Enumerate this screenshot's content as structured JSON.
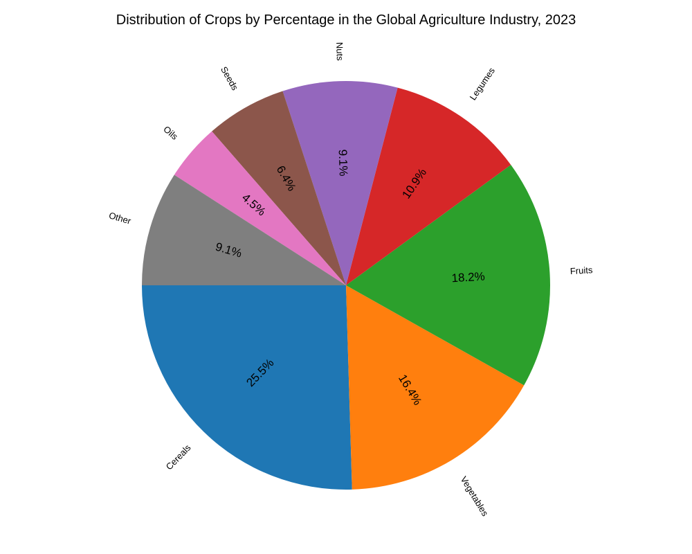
{
  "chart_data": {
    "type": "pie",
    "title": "Distribution of Crops by Percentage in the Global Agriculture Industry, 2023",
    "categories": [
      "Cereals",
      "Vegetables",
      "Fruits",
      "Legumes",
      "Nuts",
      "Seeds",
      "Oils",
      "Other"
    ],
    "values": [
      25.5,
      16.4,
      18.2,
      10.9,
      9.1,
      6.4,
      4.5,
      9.1
    ],
    "percent_labels": [
      "25.5%",
      "16.4%",
      "18.2%",
      "10.9%",
      "9.1%",
      "6.4%",
      "4.5%",
      "9.1%"
    ],
    "colors": [
      "#1f77b4",
      "#ff7f0e",
      "#2ca02c",
      "#d62728",
      "#9467bd",
      "#8c564b",
      "#e377c2",
      "#7f7f7f"
    ],
    "start_angle_deg": 180,
    "direction": "counterclockwise"
  }
}
